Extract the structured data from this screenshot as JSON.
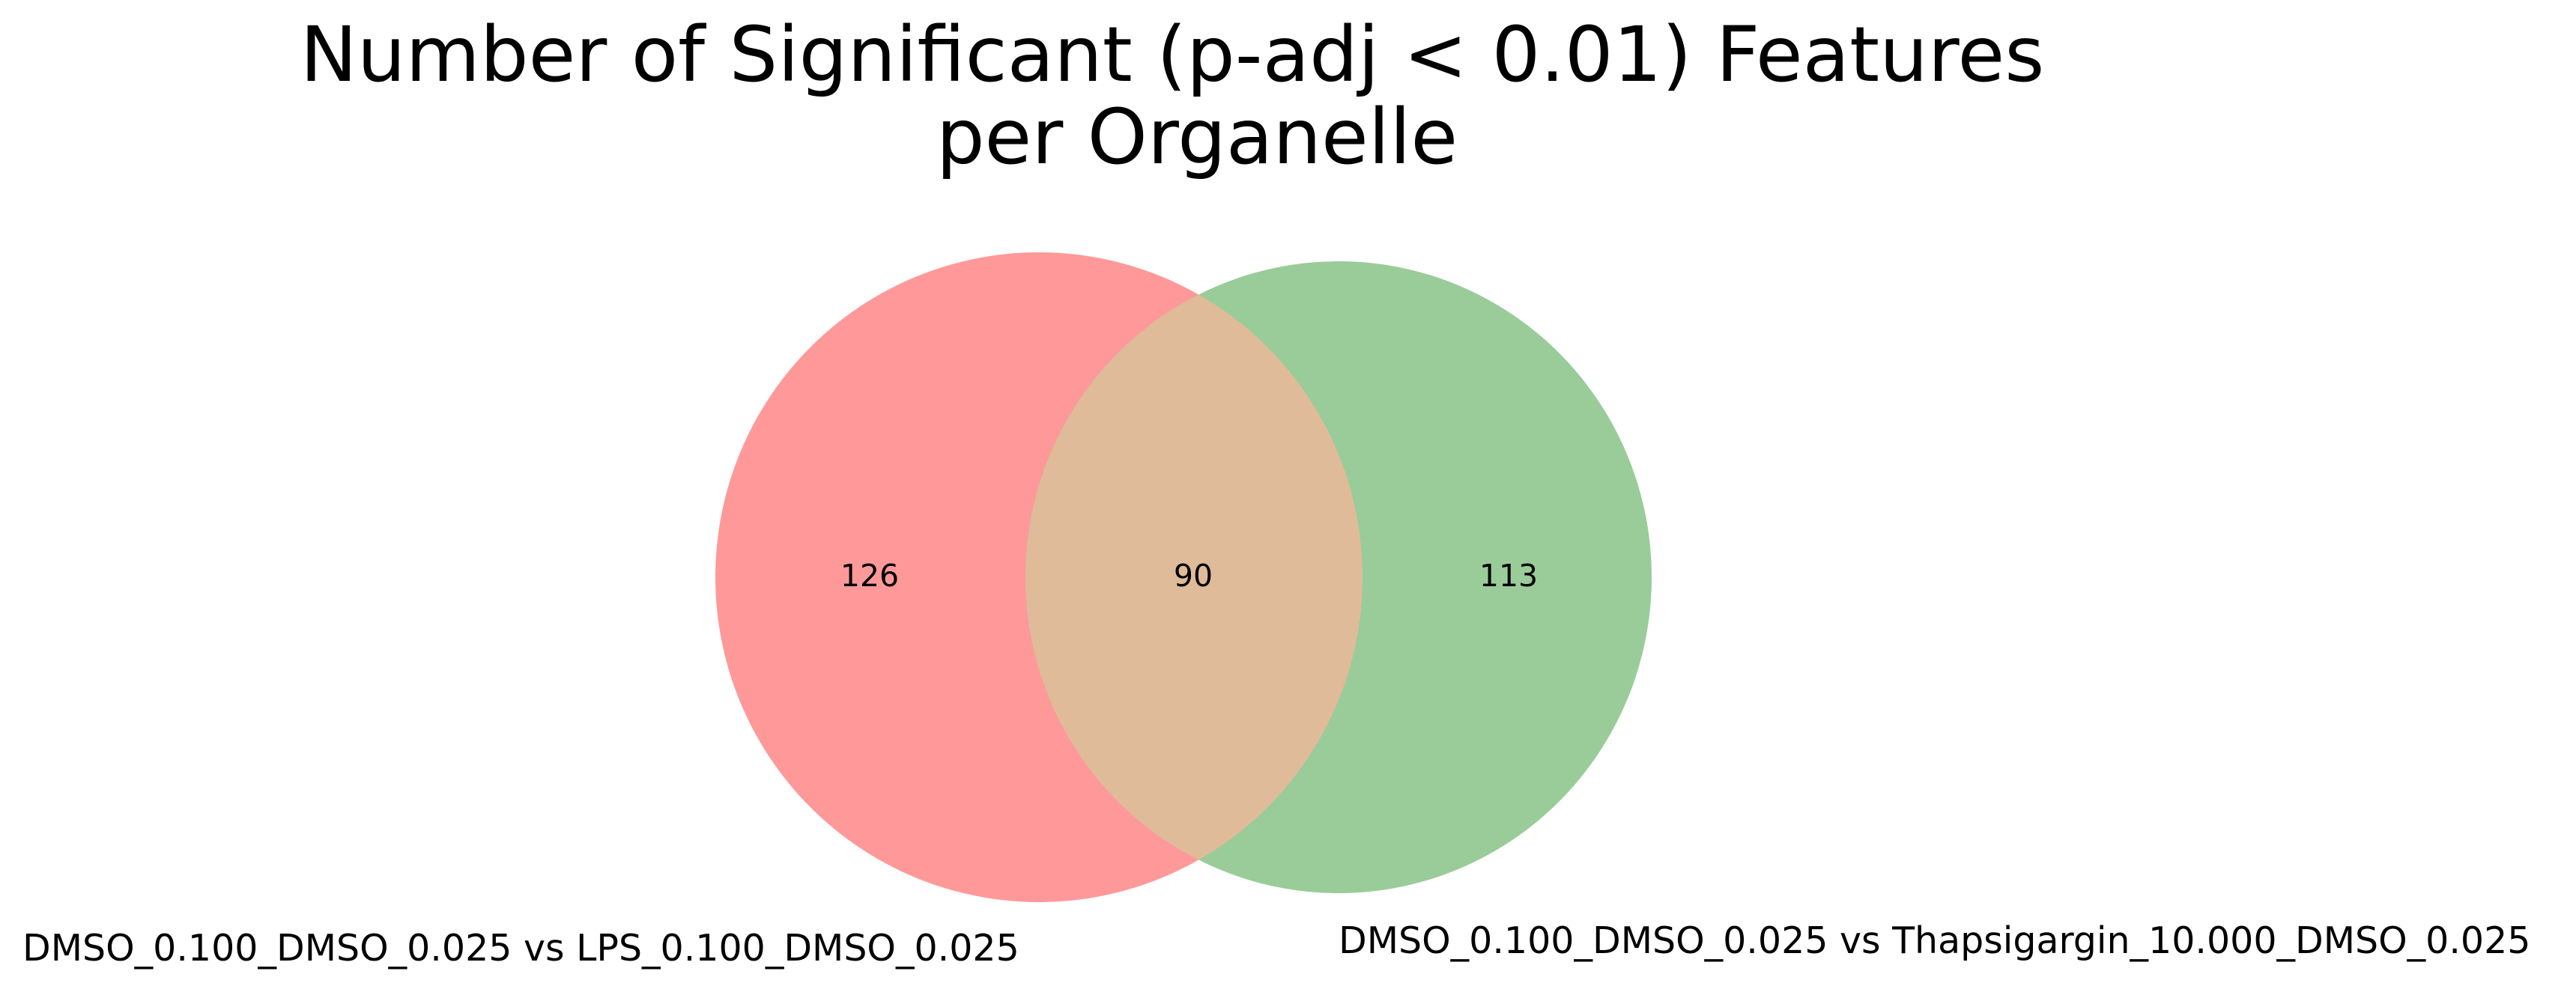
{
  "title": {
    "line1": "Number of Significant (p-adj < 0.01) Features",
    "line2": "per Organelle"
  },
  "venn": {
    "sets": [
      {
        "label": "DMSO_0.100_DMSO_0.025 vs LPS_0.100_DMSO_0.025",
        "color": "#ff9999",
        "only_count": "126"
      },
      {
        "label": "DMSO_0.100_DMSO_0.025 vs Thapsigargin_10.000_DMSO_0.025",
        "color": "#99cc99",
        "only_count": "113"
      }
    ],
    "intersection": {
      "count": "90",
      "color": "#e0bb99"
    }
  }
}
